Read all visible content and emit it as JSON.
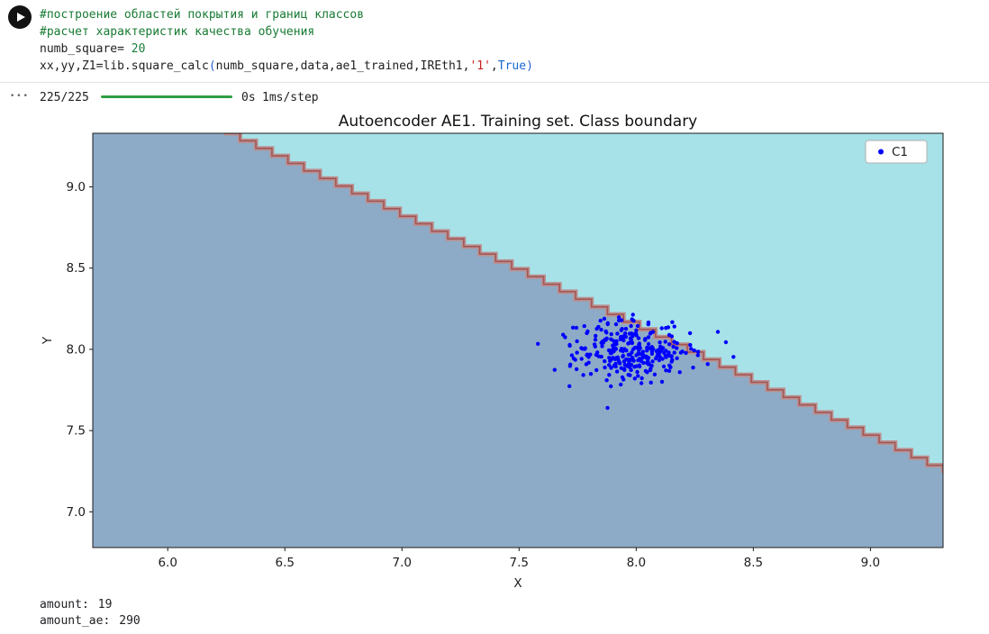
{
  "code_cell": {
    "lines": [
      {
        "segments": [
          {
            "t": "#построение областей покрытия и границ классов",
            "c": "comment"
          }
        ]
      },
      {
        "segments": [
          {
            "t": "#расчет характеристик качества обучения",
            "c": "comment"
          }
        ]
      },
      {
        "segments": [
          {
            "t": "numb_square= ",
            "c": "plain"
          },
          {
            "t": "20",
            "c": "number"
          }
        ]
      },
      {
        "segments": [
          {
            "t": "xx,yy,Z1=lib.square_calc",
            "c": "plain"
          },
          {
            "t": "(",
            "c": "bracket"
          },
          {
            "t": "numb_square,data,ae1_trained,IREth1,",
            "c": "plain"
          },
          {
            "t": "'1'",
            "c": "string"
          },
          {
            "t": ",",
            "c": "plain"
          },
          {
            "t": "True",
            "c": "keyword"
          },
          {
            "t": ")",
            "c": "bracket"
          }
        ]
      }
    ]
  },
  "progress": {
    "more": "•••",
    "counter": "225/225",
    "duration": "0s",
    "rate": "1ms/step",
    "bar_color": "#2e9e44"
  },
  "results": {
    "lines": [
      {
        "label": "amount:",
        "value": "19"
      },
      {
        "label": "amount_ae:",
        "value": "290"
      }
    ]
  },
  "colors": {
    "comment_green": "#187a33",
    "number_green": "#188038",
    "string_red": "#c5221f",
    "keyword_blue": "#1967d2",
    "progress_green": "#2e9e44",
    "scatter_blue": "#0000ff",
    "region_class": "#8dabc7",
    "region_background": "#a7e2e8",
    "boundary_rosybrown": "#bc8f8f"
  },
  "chart_data": {
    "type": "scatter",
    "title": "Autoencoder AE1. Training set. Class boundary",
    "xlabel": "X",
    "ylabel": "Y",
    "xlim": [
      5.68,
      9.31
    ],
    "ylim": [
      6.78,
      9.33
    ],
    "xticks": [
      6.0,
      6.5,
      7.0,
      7.5,
      8.0,
      8.5,
      9.0
    ],
    "yticks": [
      7.0,
      7.5,
      8.0,
      8.5,
      9.0
    ],
    "grid": false,
    "legend": {
      "position": "upper right",
      "entries": [
        {
          "label": "C1",
          "color": "#0000ff"
        }
      ]
    },
    "decision_regions": {
      "class_region_color": "#8dabc7",
      "background_color": "#a7e2e8",
      "boundary_color": "#bc8f8f",
      "boundary_core_color": "#9e5555",
      "boundary_start": [
        6.24,
        9.33
      ],
      "boundary_end": [
        9.31,
        7.24
      ],
      "boundary_steps": 45
    },
    "series": [
      {
        "name": "C1",
        "marker_color": "#0000ff",
        "marker_size": 2.2,
        "distribution": {
          "center": [
            7.99,
            8.0
          ],
          "std": [
            0.13,
            0.095
          ],
          "count": 300,
          "seed": 7
        }
      }
    ]
  }
}
